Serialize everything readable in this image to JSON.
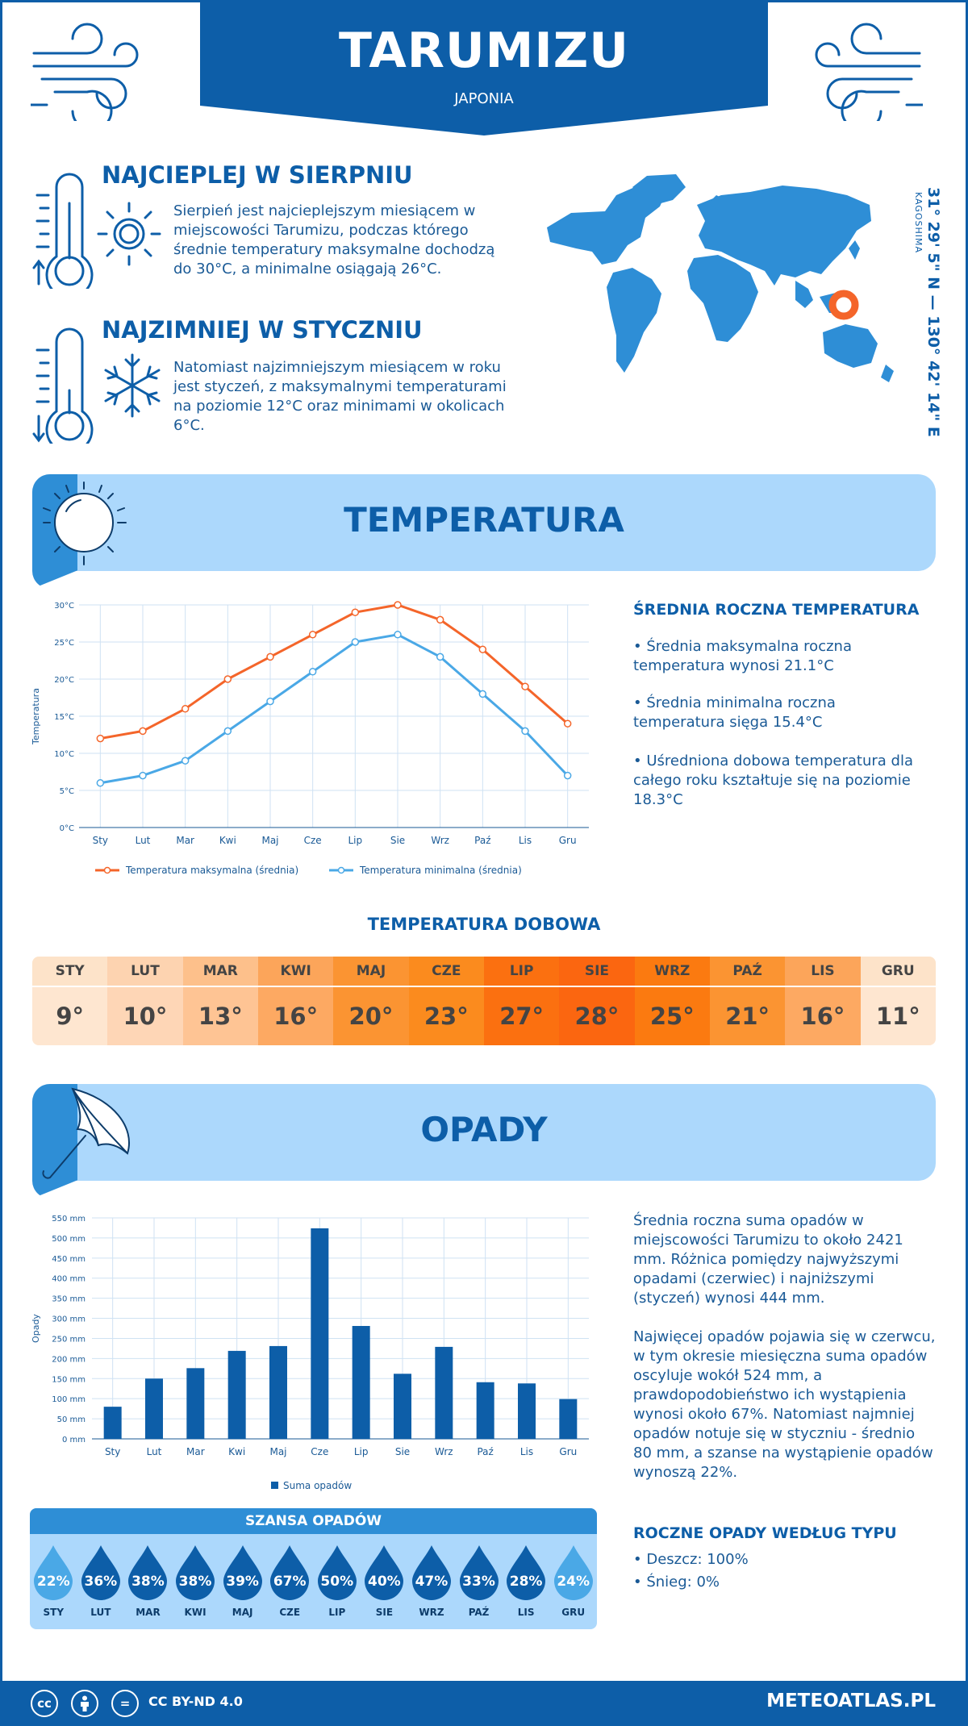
{
  "header": {
    "city": "TARUMIZU",
    "country": "JAPONIA"
  },
  "hottest": {
    "title": "NAJCIEPLEJ W SIERPNIU",
    "text": "Sierpień jest najcieplejszym miesiącem w miejscowości Tarumizu, podczas którego średnie temperatury maksymalne dochodzą do 30°C, a minimalne osiągają 26°C."
  },
  "coldest": {
    "title": "NAJZIMNIEJ W STYCZNIU",
    "text": "Natomiast najzimniejszym miesiącem w roku jest styczeń, z maksymalnymi temperaturami na poziomie 12°C oraz minimami w okolicach 6°C."
  },
  "location": {
    "coords": "31° 29' 5\" N — 130° 42' 14\" E",
    "region": "KAGOSHIMA"
  },
  "temperature_section": {
    "title": "TEMPERATURA",
    "side_title": "ŚREDNIA ROCZNA TEMPERATURA",
    "bullets": [
      "• Średnia maksymalna roczna temperatura wynosi 21.1°C",
      "• Średnia minimalna roczna temperatura sięga 15.4°C",
      "• Uśredniona dobowa temperatura dla całego roku kształtuje się na poziomie 18.3°C"
    ],
    "daily_title": "TEMPERATURA DOBOWA"
  },
  "daily_temps": {
    "months": [
      "STY",
      "LUT",
      "MAR",
      "KWI",
      "MAJ",
      "CZE",
      "LIP",
      "SIE",
      "WRZ",
      "PAŹ",
      "LIS",
      "GRU"
    ],
    "values": [
      "9°",
      "10°",
      "13°",
      "16°",
      "20°",
      "23°",
      "27°",
      "28°",
      "25°",
      "21°",
      "16°",
      "11°"
    ],
    "head_colors": [
      "#fde3c9",
      "#fdd3b0",
      "#fdc08b",
      "#fca55a",
      "#fb9432",
      "#fb8b1e",
      "#fb7010",
      "#fb6610",
      "#fb7a10",
      "#fb9432",
      "#fca55a",
      "#fde3c9"
    ],
    "val_colors": [
      "#fee6d0",
      "#fed6b6",
      "#fec494",
      "#fda962",
      "#fb9432",
      "#fb8b1e",
      "#fb7010",
      "#fb6610",
      "#fb7a10",
      "#fb9432",
      "#fda962",
      "#fee6d0"
    ]
  },
  "precip_section": {
    "title": "OPADY",
    "p1": "Średnia roczna suma opadów w miejscowości Tarumizu to około 2421 mm. Różnica pomiędzy najwyższymi opadami (czerwiec) i najniższymi (styczeń) wynosi 444 mm.",
    "p2": "Najwięcej opadów pojawia się w czerwcu, w tym okresie miesięczna suma opadów oscyluje wokół 524 mm, a prawdopodobieństwo ich wystąpienia wynosi około 67%. Natomiast najmniej opadów notuje się w styczniu - średnio 80 mm, a szanse na wystąpienie opadów wynoszą 22%.",
    "type_title": "ROCZNE OPADY WEDŁUG TYPU",
    "types": [
      "• Deszcz: 100%",
      "• Śnieg: 0%"
    ]
  },
  "rain_chance": {
    "title": "SZANSA OPADÓW",
    "months": [
      "STY",
      "LUT",
      "MAR",
      "KWI",
      "MAJ",
      "CZE",
      "LIP",
      "SIE",
      "WRZ",
      "PAŹ",
      "LIS",
      "GRU"
    ],
    "values": [
      "22%",
      "36%",
      "38%",
      "38%",
      "39%",
      "67%",
      "50%",
      "40%",
      "47%",
      "33%",
      "28%",
      "24%"
    ],
    "colors": [
      "#4aa8e6",
      "#0d5ea8",
      "#0d5ea8",
      "#0d5ea8",
      "#0d5ea8",
      "#0d5ea8",
      "#0d5ea8",
      "#0d5ea8",
      "#0d5ea8",
      "#0d5ea8",
      "#0d5ea8",
      "#4aa8e6"
    ]
  },
  "chart_data": [
    {
      "type": "line",
      "categories": [
        "Sty",
        "Lut",
        "Mar",
        "Kwi",
        "Maj",
        "Cze",
        "Lip",
        "Sie",
        "Wrz",
        "Paź",
        "Lis",
        "Gru"
      ],
      "series": [
        {
          "name": "Temperatura maksymalna (średnia)",
          "values": [
            12,
            13,
            16,
            20,
            23,
            26,
            29,
            30,
            28,
            24,
            19,
            14
          ],
          "color": "#f4652a"
        },
        {
          "name": "Temperatura minimalna (średnia)",
          "values": [
            6,
            7,
            9,
            13,
            17,
            21,
            25,
            26,
            23,
            18,
            13,
            7
          ],
          "color": "#4aa8e6"
        }
      ],
      "ylabel": "Temperatura",
      "ylim": [
        0,
        30
      ],
      "yticks": [
        "0°C",
        "5°C",
        "10°C",
        "15°C",
        "20°C",
        "25°C",
        "30°C"
      ],
      "grid": true,
      "legend": "bottom"
    },
    {
      "type": "bar",
      "categories": [
        "Sty",
        "Lut",
        "Mar",
        "Kwi",
        "Maj",
        "Cze",
        "Lip",
        "Sie",
        "Wrz",
        "Paź",
        "Lis",
        "Gru"
      ],
      "series": [
        {
          "name": "Suma opadów",
          "values": [
            80,
            150,
            176,
            219,
            231,
            524,
            281,
            162,
            229,
            141,
            138,
            99
          ],
          "color": "#0d5ea8"
        }
      ],
      "ylabel": "Opady",
      "ylim": [
        0,
        550
      ],
      "yticks": [
        "0 mm",
        "50 mm",
        "100 mm",
        "150 mm",
        "200 mm",
        "250 mm",
        "300 mm",
        "350 mm",
        "400 mm",
        "450 mm",
        "500 mm",
        "550 mm"
      ],
      "grid": true,
      "legend": "bottom"
    }
  ],
  "footer": {
    "license": "CC BY-ND 4.0",
    "site": "METEOATLAS.PL"
  }
}
